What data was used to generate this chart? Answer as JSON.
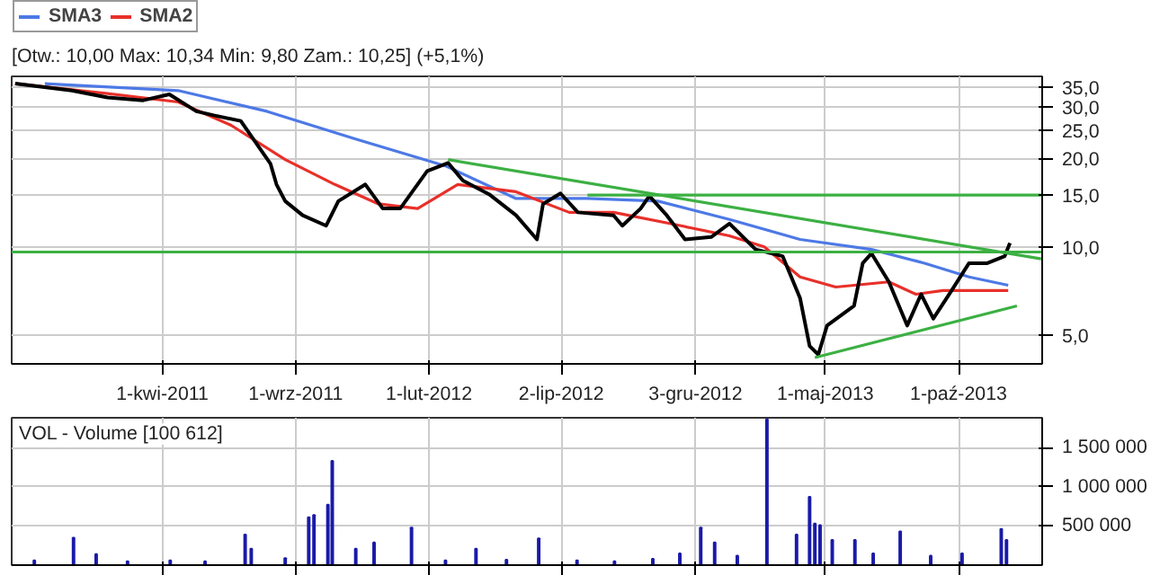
{
  "chart_data": [
    {
      "type": "line",
      "title": "[Otw.: 10,00  Max: 10,34  Min: 9,80  Zam.: 10,25] (+5,1%)",
      "log": "y",
      "grid": true,
      "legend": "top left",
      "xlim": [
        "2010-10-10",
        "2014-01-05"
      ],
      "xticks": [
        {
          "value": "2011-04-01",
          "label": "1-kwi-2011"
        },
        {
          "value": "2011-09-01",
          "label": "1-wrz-2011"
        },
        {
          "value": "2012-02-01",
          "label": "1-lut-2012"
        },
        {
          "value": "2012-07-02",
          "label": "2-lip-2012"
        },
        {
          "value": "2012-12-03",
          "label": "3-gru-2012"
        },
        {
          "value": "2013-05-01",
          "label": "1-maj-2013"
        },
        {
          "value": "2013-10-01",
          "label": "1-paź-2013"
        }
      ],
      "ylim": [
        4,
        38
      ],
      "yticks": [
        {
          "value": 5,
          "label": "5,0"
        },
        {
          "value": 10,
          "label": "10,0"
        },
        {
          "value": 15,
          "label": "15,0"
        },
        {
          "value": 20,
          "label": "20,0"
        },
        {
          "value": 25,
          "label": "25,0"
        },
        {
          "value": 30,
          "label": "30,0"
        },
        {
          "value": 35,
          "label": "35,0"
        }
      ],
      "ref_lines": [
        {
          "axis": "y",
          "value": 9.6,
          "color": "#3cb043"
        }
      ],
      "series": [
        {
          "name": "SMA3",
          "color": "#4d79e6",
          "x": [
            "2010-11-17",
            "2011-04-19",
            "2011-07-30",
            "2011-11-08",
            "2012-02-21",
            "2012-05-11",
            "2012-08-01",
            "2012-10-21",
            "2013-01-11",
            "2013-04-02",
            "2013-06-23",
            "2013-08-23",
            "2013-10-13",
            "2013-11-27"
          ],
          "values": [
            35.9,
            34,
            28.9,
            23.3,
            18.8,
            14.6,
            14.6,
            14.3,
            12.4,
            10.6,
            9.8,
            8.8,
            7.9,
            7.4
          ]
        },
        {
          "name": "SMA2",
          "color": "#e8302a",
          "x": [
            "2010-10-14",
            "2011-01-28",
            "2011-04-19",
            "2011-06-19",
            "2011-08-20",
            "2011-10-16",
            "2011-12-05",
            "2012-01-19",
            "2012-03-05",
            "2012-05-11",
            "2012-07-11",
            "2012-08-31",
            "2012-11-10",
            "2013-01-11",
            "2013-02-20",
            "2013-04-02",
            "2013-05-13",
            "2013-07-13",
            "2013-08-13",
            "2013-09-13",
            "2013-10-13",
            "2013-11-27"
          ],
          "values": [
            35.9,
            33.2,
            31.1,
            25.9,
            19.8,
            16.3,
            14,
            13.5,
            16.3,
            15.4,
            13.1,
            13.1,
            11.9,
            10.9,
            10,
            7.9,
            7.3,
            7.6,
            6.9,
            7.1,
            7.1,
            7.1
          ]
        },
        {
          "color": "#000000",
          "x": [
            "2010-10-14",
            "2010-12-18",
            "2011-01-28",
            "2011-03-10",
            "2011-04-09",
            "2011-05-10",
            "2011-05-30",
            "2011-06-30",
            "2011-07-20",
            "2011-08-03",
            "2011-08-10",
            "2011-08-20",
            "2011-09-09",
            "2011-10-06",
            "2011-10-20",
            "2011-11-20",
            "2011-12-10",
            "2011-12-30",
            "2012-01-30",
            "2012-02-23",
            "2012-03-11",
            "2012-04-10",
            "2012-05-11",
            "2012-06-04",
            "2012-06-11",
            "2012-07-01",
            "2012-07-21",
            "2012-08-31",
            "2012-09-10",
            "2012-10-01",
            "2012-10-11",
            "2012-10-31",
            "2012-11-21",
            "2012-12-21",
            "2013-01-11",
            "2013-02-10",
            "2013-03-13",
            "2013-04-02",
            "2013-04-13",
            "2013-04-23",
            "2013-05-03",
            "2013-06-03",
            "2013-06-13",
            "2013-06-23",
            "2013-07-13",
            "2013-08-03",
            "2013-08-19",
            "2013-09-02",
            "2013-09-23",
            "2013-10-13",
            "2013-11-03",
            "2013-11-23",
            "2013-11-29"
          ],
          "values": [
            35.9,
            34,
            32.2,
            31.5,
            33,
            28.9,
            28,
            26.8,
            22,
            19.2,
            16.3,
            14.3,
            12.8,
            11.8,
            14.3,
            16.3,
            13.5,
            13.5,
            18.1,
            19.3,
            16.8,
            15.1,
            12.8,
            10.6,
            14,
            15.2,
            13.1,
            12.8,
            11.8,
            13.5,
            14.9,
            12.8,
            10.6,
            10.8,
            12,
            9.8,
            9.3,
            6.7,
            4.6,
            4.3,
            5.4,
            6.3,
            8.8,
            9.5,
            7.6,
            5.4,
            6.9,
            5.7,
            7.1,
            8.8,
            8.8,
            9.3,
            10.3
          ]
        },
        {
          "color": "#3cb043",
          "x": [
            "2012-02-23",
            "2014-01-04"
          ],
          "values": [
            19.8,
            9.1
          ]
        },
        {
          "color": "#3cb043",
          "x": [
            "2013-04-19",
            "2013-12-07"
          ],
          "values": [
            4.2,
            6.3
          ]
        },
        {
          "color": "#3cb043",
          "x": [
            "2012-08-01",
            "2014-01-04"
          ],
          "values": [
            15,
            15
          ]
        }
      ]
    },
    {
      "type": "bar",
      "title": "VOL - Volume [100 612]",
      "grid": true,
      "tick_labels": "y",
      "xlim": [
        "2010-10-10",
        "2014-01-05"
      ],
      "xticks": [
        {
          "value": "2011-04-01",
          "label": null
        },
        {
          "value": "2011-09-01",
          "label": null
        },
        {
          "value": "2012-02-01",
          "label": null
        },
        {
          "value": "2012-07-02",
          "label": null
        },
        {
          "value": "2012-12-03",
          "label": null
        },
        {
          "value": "2013-05-01",
          "label": null
        },
        {
          "value": "2013-10-01",
          "label": null
        }
      ],
      "ylim": [
        0,
        1880000
      ],
      "yticks": [
        {
          "value": 500000,
          "label": "500 000"
        },
        {
          "value": 1000000,
          "label": "1 000 000"
        },
        {
          "value": 1500000,
          "label": "1 500 000"
        }
      ],
      "series": [
        {
          "color": "#1a1aa8",
          "x": [
            "2010-11-05",
            "2010-12-20",
            "2011-01-15",
            "2011-02-20",
            "2011-04-10",
            "2011-05-20",
            "2011-07-05",
            "2011-07-12",
            "2011-08-20",
            "2011-09-16",
            "2011-09-22",
            "2011-10-08",
            "2011-10-13",
            "2011-11-09",
            "2011-11-30",
            "2012-01-12",
            "2012-02-20",
            "2012-03-26",
            "2012-04-30",
            "2012-06-06",
            "2012-07-20",
            "2012-09-01",
            "2012-10-15",
            "2012-11-15",
            "2012-12-09",
            "2012-12-25",
            "2013-01-20",
            "2013-02-23",
            "2013-03-29",
            "2013-04-13",
            "2013-04-19",
            "2013-04-25",
            "2013-05-09",
            "2013-06-04",
            "2013-06-25",
            "2013-07-26",
            "2013-08-30",
            "2013-10-05",
            "2013-11-19",
            "2013-11-25"
          ],
          "values": [
            60000,
            350000,
            140000,
            50000,
            60000,
            50000,
            390000,
            210000,
            90000,
            610000,
            640000,
            770000,
            1330000,
            210000,
            290000,
            480000,
            60000,
            210000,
            70000,
            340000,
            60000,
            50000,
            80000,
            150000,
            480000,
            290000,
            120000,
            1860000,
            390000,
            870000,
            530000,
            510000,
            320000,
            320000,
            150000,
            430000,
            120000,
            150000,
            460000,
            320000
          ]
        }
      ]
    }
  ]
}
